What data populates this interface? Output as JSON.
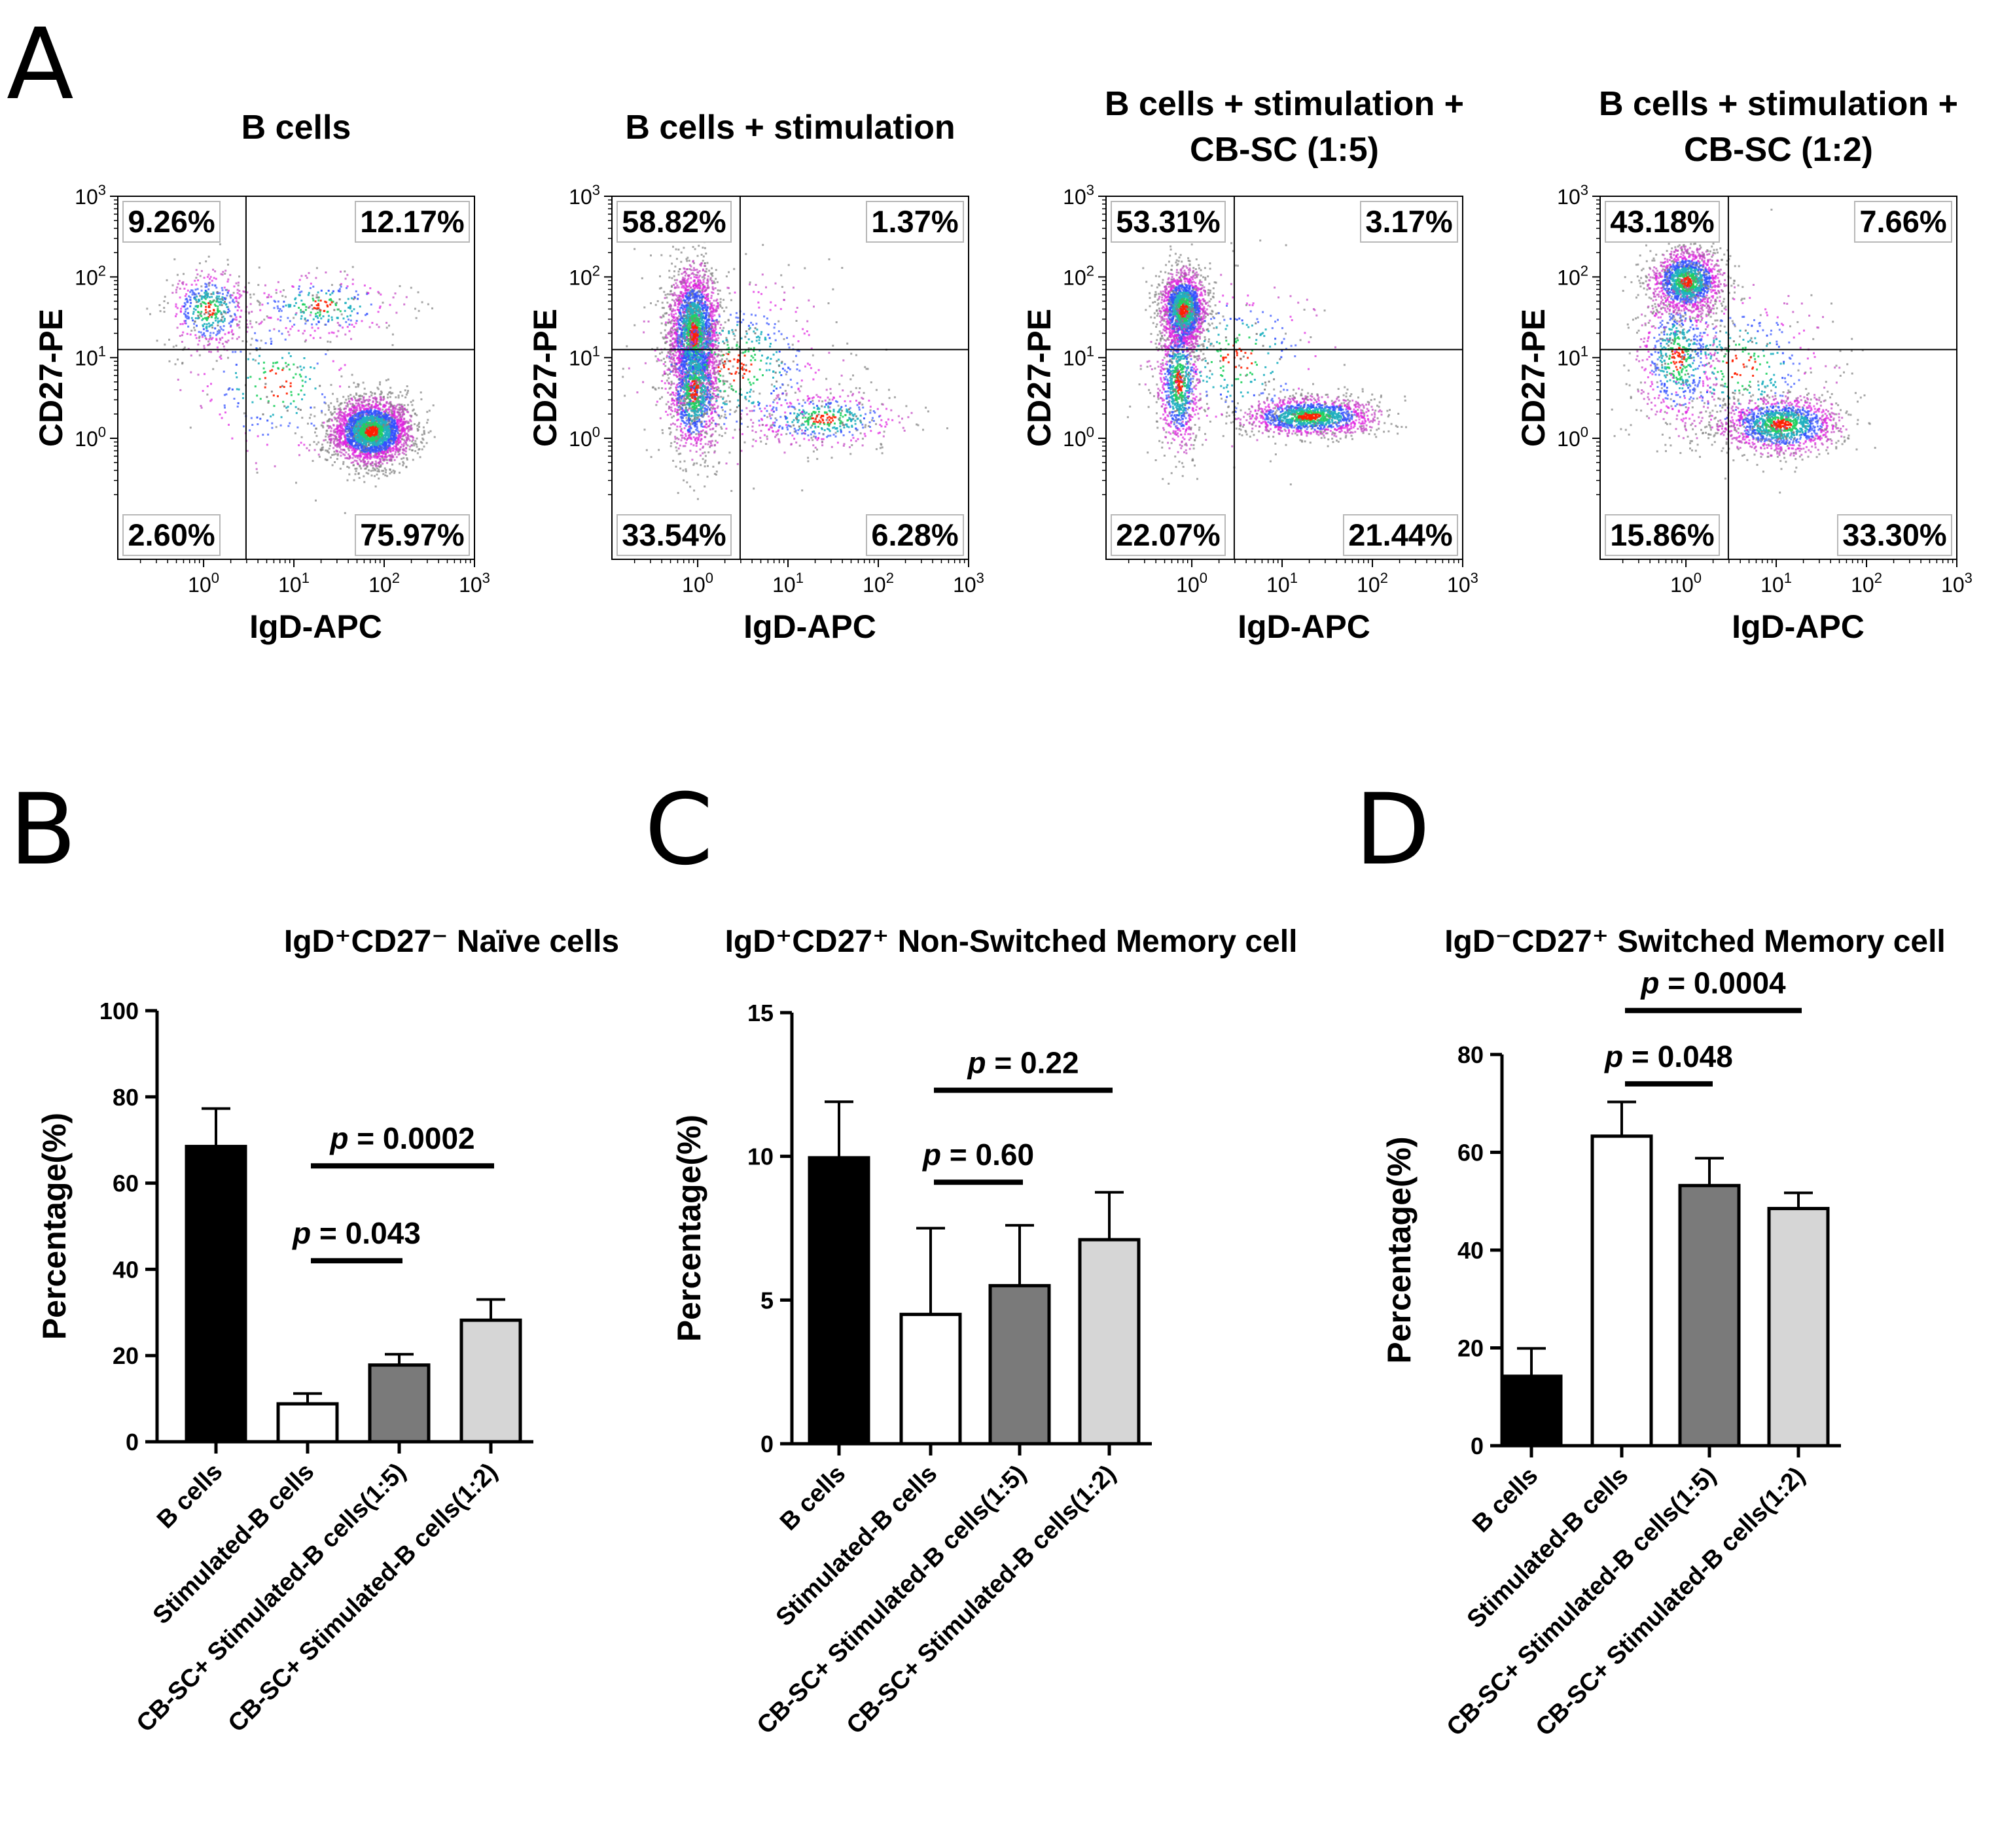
{
  "panel_letters": [
    "A",
    "B",
    "C",
    "D"
  ],
  "flow_colors": [
    "#808080",
    "#c040c0",
    "#e020e0",
    "#3050ff",
    "#20b0c0",
    "#20d060",
    "#ff2000"
  ],
  "flow_plots": [
    {
      "title_lines": [
        "B cells"
      ],
      "xlabel": "IgD-APC",
      "ylabel": "CD27-PE",
      "x_ticks": [
        "10^0",
        "10^1",
        "10^2",
        "10^3"
      ],
      "y_ticks": [
        "10^0",
        "10^1",
        "10^2",
        "10^3"
      ],
      "quadrants": {
        "upper_left": "9.26%",
        "upper_right": "12.17%",
        "lower_left": "2.60%",
        "lower_right": "75.97%"
      },
      "gate": {
        "x": 0.47,
        "y": 1.1
      },
      "populations": [
        {
          "cx": 1.85,
          "cy": 0.1,
          "sx": 0.22,
          "sy": 0.2,
          "n": 3000
        },
        {
          "cx": 0.05,
          "cy": 1.6,
          "sx": 0.22,
          "sy": 0.25,
          "n": 500
        },
        {
          "cx": 1.3,
          "cy": 1.65,
          "sx": 0.45,
          "sy": 0.2,
          "n": 300
        },
        {
          "cx": 0.8,
          "cy": 0.7,
          "sx": 0.5,
          "sy": 0.5,
          "n": 250
        }
      ]
    },
    {
      "title_lines": [
        "B cells + stimulation"
      ],
      "xlabel": "IgD-APC",
      "ylabel": "CD27-PE",
      "x_ticks": [
        "10^0",
        "10^1",
        "10^2",
        "10^3"
      ],
      "y_ticks": [
        "10^0",
        "10^1",
        "10^2",
        "10^3"
      ],
      "quadrants": {
        "upper_left": "58.82%",
        "upper_right": "1.37%",
        "lower_left": "33.54%",
        "lower_right": "6.28%"
      },
      "gate": {
        "x": 0.47,
        "y": 1.1
      },
      "populations": [
        {
          "cx": -0.05,
          "cy": 1.3,
          "sx": 0.14,
          "sy": 0.42,
          "n": 2400
        },
        {
          "cx": -0.05,
          "cy": 0.6,
          "sx": 0.14,
          "sy": 0.4,
          "n": 1000
        },
        {
          "cx": 1.4,
          "cy": 0.25,
          "sx": 0.45,
          "sy": 0.17,
          "n": 500
        },
        {
          "cx": 0.4,
          "cy": 0.9,
          "sx": 0.55,
          "sy": 0.55,
          "n": 600
        }
      ]
    },
    {
      "title_lines": [
        "B cells + stimulation +",
        "CB-SC (1:5)"
      ],
      "xlabel": "IgD-APC",
      "ylabel": "CD27-PE",
      "x_ticks": [
        "10^0",
        "10^1",
        "10^2",
        "10^3"
      ],
      "y_ticks": [
        "10^0",
        "10^1",
        "10^2",
        "10^3"
      ],
      "quadrants": {
        "upper_left": "53.31%",
        "upper_right": "3.17%",
        "lower_left": "22.07%",
        "lower_right": "21.44%"
      },
      "gate": {
        "x": 0.47,
        "y": 1.1
      },
      "populations": [
        {
          "cx": -0.1,
          "cy": 1.6,
          "sx": 0.13,
          "sy": 0.25,
          "n": 1800
        },
        {
          "cx": -0.15,
          "cy": 0.7,
          "sx": 0.12,
          "sy": 0.42,
          "n": 900
        },
        {
          "cx": 1.3,
          "cy": 0.28,
          "sx": 0.38,
          "sy": 0.12,
          "n": 1400
        },
        {
          "cx": 0.5,
          "cy": 1.0,
          "sx": 0.5,
          "sy": 0.5,
          "n": 300
        }
      ]
    },
    {
      "title_lines": [
        "B cells + stimulation +",
        "CB-SC (1:2)"
      ],
      "xlabel": "IgD-APC",
      "ylabel": "CD27-PE",
      "x_ticks": [
        "10^0",
        "10^1",
        "10^2",
        "10^3"
      ],
      "y_ticks": [
        "10^0",
        "10^1",
        "10^2",
        "10^3"
      ],
      "quadrants": {
        "upper_left": "43.18%",
        "upper_right": "7.66%",
        "lower_left": "15.86%",
        "lower_right": "33.30%"
      },
      "gate": {
        "x": 0.47,
        "y": 1.1
      },
      "populations": [
        {
          "cx": 0.0,
          "cy": 1.95,
          "sx": 0.2,
          "sy": 0.2,
          "n": 1500
        },
        {
          "cx": -0.1,
          "cy": 1.0,
          "sx": 0.22,
          "sy": 0.45,
          "n": 700
        },
        {
          "cx": 1.05,
          "cy": 0.18,
          "sx": 0.33,
          "sy": 0.18,
          "n": 1400
        },
        {
          "cx": 0.6,
          "cy": 0.9,
          "sx": 0.5,
          "sy": 0.5,
          "n": 400
        }
      ]
    }
  ],
  "chart_data": [
    {
      "type": "bar",
      "title": "IgD⁺CD27⁻ Naïve cells",
      "ylabel": "Percentage(%)",
      "ylim": [
        0,
        100
      ],
      "yticks": [
        0,
        20,
        40,
        60,
        80,
        100
      ],
      "categories": [
        "B cells",
        "Stimulated-B cells",
        "CB-SC+ Stimulated-B cells(1:5)",
        "CB-SC+ Stimulated-B cells(1:2)"
      ],
      "values": [
        68.5,
        8.8,
        17.8,
        28.2
      ],
      "errors": [
        8.8,
        2.4,
        2.5,
        4.8
      ],
      "bar_colors": [
        "#000000",
        "#ffffff",
        "#7a7a7a",
        "#d6d6d6"
      ],
      "comparisons": [
        {
          "from": 1,
          "to": 2,
          "y": 42,
          "label_p": "p",
          "label_rest": " = 0.043"
        },
        {
          "from": 1,
          "to": 3,
          "y": 64,
          "label_p": "p",
          "label_rest": " = 0.0002"
        }
      ]
    },
    {
      "type": "bar",
      "title": "IgD⁺CD27⁺ Non-Switched Memory cell",
      "ylabel": "Percentage(%)",
      "ylim": [
        0,
        15
      ],
      "yticks": [
        0,
        5,
        10,
        15
      ],
      "categories": [
        "B cells",
        "Stimulated-B cells",
        "CB-SC+ Stimulated-B cells(1:5)",
        "CB-SC+ Stimulated-B cells(1:2)"
      ],
      "values": [
        9.95,
        4.5,
        5.5,
        7.1
      ],
      "errors": [
        1.95,
        3.0,
        2.1,
        1.65
      ],
      "bar_colors": [
        "#000000",
        "#ffffff",
        "#7a7a7a",
        "#d6d6d6"
      ],
      "comparisons": [
        {
          "from": 1,
          "to": 2,
          "y": 9.1,
          "label_p": "p",
          "label_rest": " = 0.60"
        },
        {
          "from": 1,
          "to": 3,
          "y": 12.3,
          "label_p": "p",
          "label_rest": " = 0.22"
        }
      ]
    },
    {
      "type": "bar",
      "title": "IgD⁻CD27⁺ Switched Memory cell",
      "ylabel": "Percentage(%)",
      "ylim": [
        0,
        80
      ],
      "yticks": [
        0,
        20,
        40,
        60,
        80
      ],
      "categories": [
        "B cells",
        "Stimulated-B cells",
        "CB-SC+ Stimulated-B cells(1:5)",
        "CB-SC+ Stimulated-B cells(1:2)"
      ],
      "values": [
        14.2,
        63.3,
        53.2,
        48.5
      ],
      "errors": [
        5.7,
        7.0,
        5.6,
        3.2
      ],
      "bar_colors": [
        "#000000",
        "#ffffff",
        "#7a7a7a",
        "#d6d6d6"
      ],
      "comparisons": [
        {
          "from": 1,
          "to": 2,
          "y": 74,
          "label_p": "p",
          "label_rest": " = 0.048"
        },
        {
          "from": 1,
          "to": 3,
          "y": 89,
          "label_p": "p",
          "label_rest": " = 0.0004"
        }
      ]
    }
  ]
}
